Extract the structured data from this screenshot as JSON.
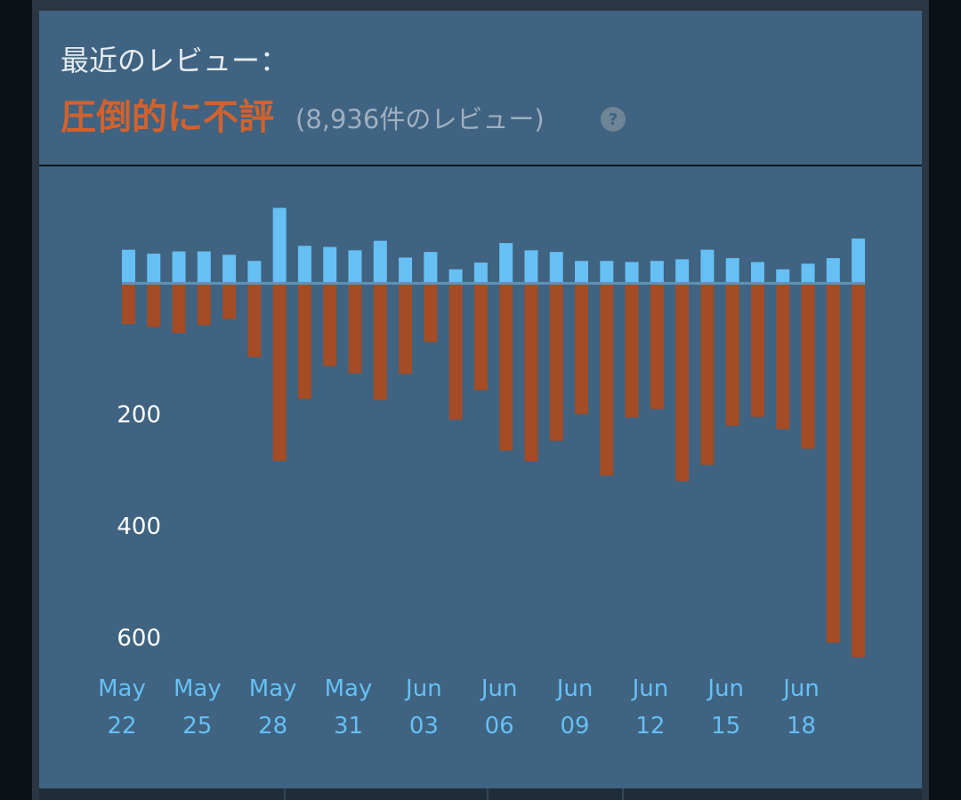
{
  "header": {
    "label": "最近のレビュー：",
    "rating": "圧倒的に不評",
    "count": "(8,936件のレビュー)",
    "help": "?"
  },
  "chart_data": {
    "type": "bar",
    "categories": [
      "May 22",
      null,
      null,
      "May 25",
      null,
      null,
      "May 28",
      null,
      null,
      "May 31",
      null,
      null,
      "Jun 03",
      null,
      null,
      "Jun 06",
      null,
      null,
      "Jun 09",
      null,
      null,
      "Jun 12",
      null,
      null,
      "Jun 15",
      null,
      null,
      "Jun 18",
      null,
      null
    ],
    "series": [
      {
        "color": "#66c0f4",
        "values": [
          60,
          53,
          57,
          57,
          51,
          40,
          135,
          67,
          65,
          59,
          76,
          46,
          56,
          25,
          37,
          72,
          59,
          56,
          40,
          40,
          38,
          40,
          43,
          60,
          45,
          38,
          25,
          35,
          45,
          80
        ]
      },
      {
        "color": "#a34c25",
        "values": [
          -73,
          -78,
          -89,
          -75,
          -64,
          -132,
          -318,
          -207,
          -148,
          -161,
          -209,
          -162,
          -105,
          -244,
          -191,
          -299,
          -318,
          -282,
          -234,
          -344,
          -240,
          -225,
          -354,
          -325,
          -255,
          -239,
          -261,
          -296,
          -643,
          -669
        ]
      }
    ],
    "ylim": [
      -700,
      190
    ],
    "yticks": [
      0,
      {
        "value": -200,
        "label": "200"
      },
      {
        "value": -400,
        "label": "400"
      },
      {
        "value": -600,
        "label": "600"
      }
    ]
  }
}
